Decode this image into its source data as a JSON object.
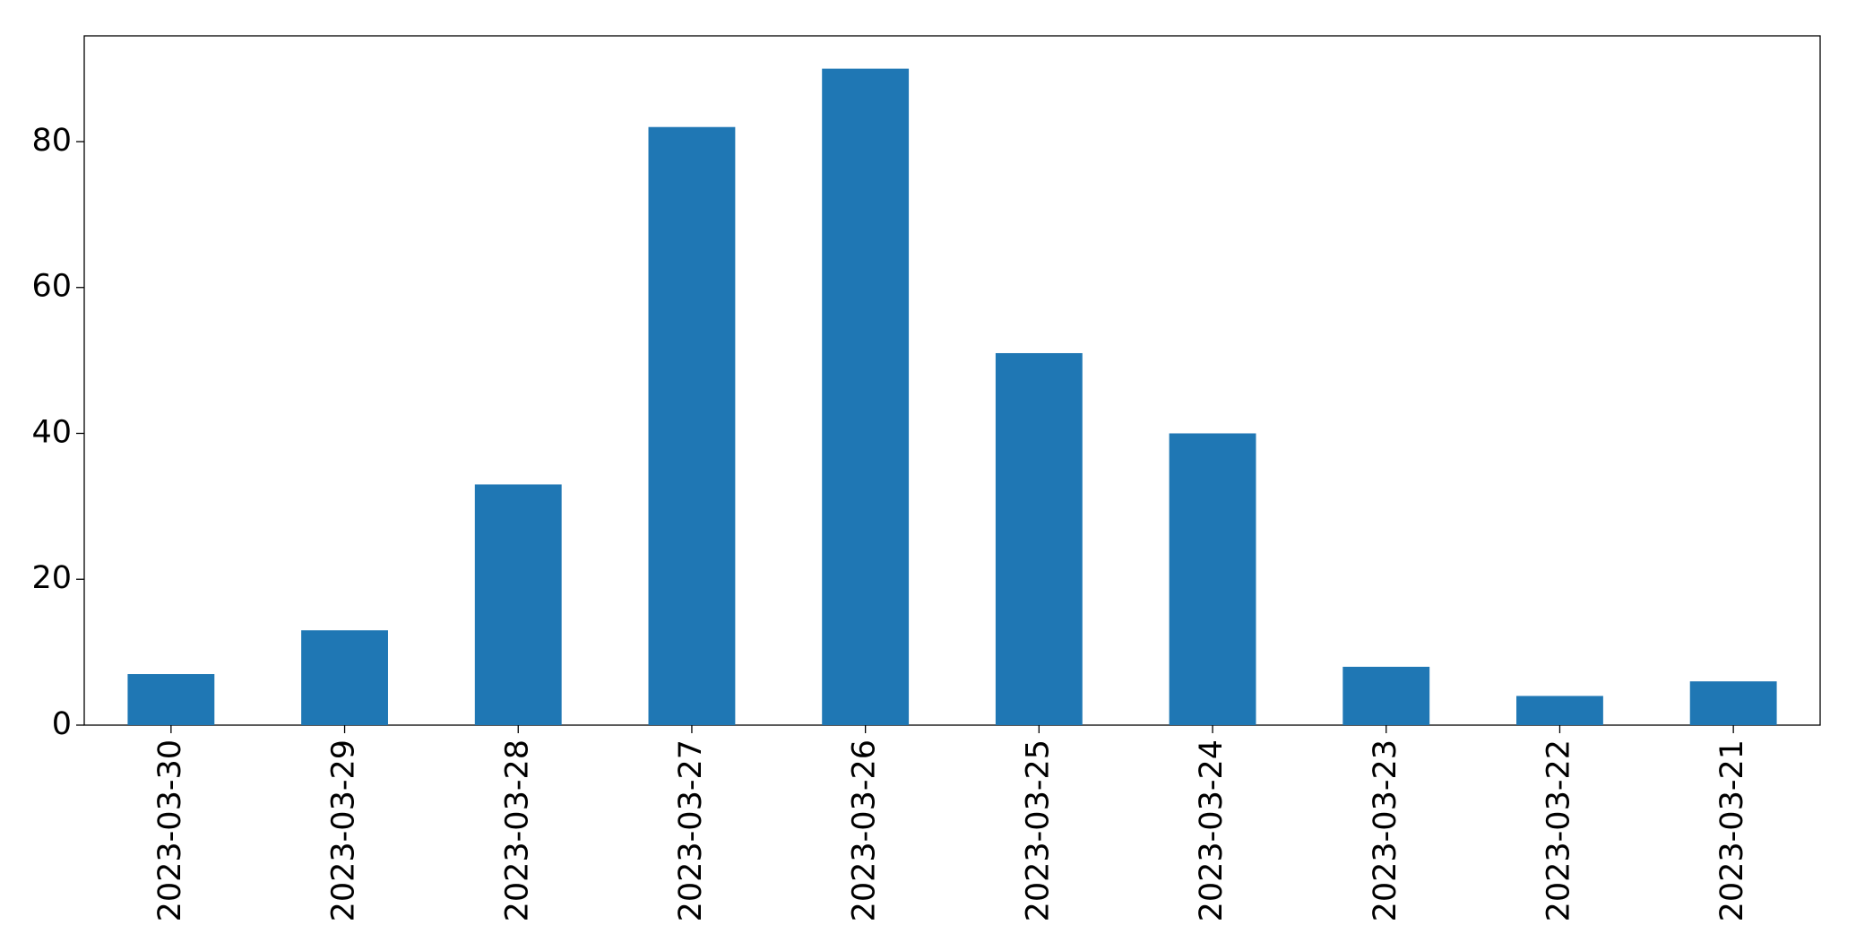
{
  "chart_data": {
    "type": "bar",
    "categories": [
      "2023-03-30",
      "2023-03-29",
      "2023-03-28",
      "2023-03-27",
      "2023-03-26",
      "2023-03-25",
      "2023-03-24",
      "2023-03-23",
      "2023-03-22",
      "2023-03-21"
    ],
    "values": [
      7,
      13,
      33,
      82,
      90,
      51,
      40,
      8,
      4,
      6
    ],
    "color": "#1f77b4",
    "ylim": [
      0,
      94.5
    ],
    "yticks": [
      0,
      20,
      40,
      60,
      80
    ],
    "grid": false
  }
}
